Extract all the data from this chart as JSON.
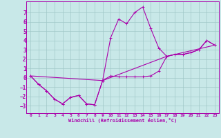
{
  "bg_color": "#c8e8e8",
  "grid_color": "#a0c8c8",
  "line_color": "#aa00aa",
  "xlim": [
    -0.5,
    23.5
  ],
  "ylim": [
    -3.8,
    8.2
  ],
  "yticks": [
    -3,
    -2,
    -1,
    0,
    1,
    2,
    3,
    4,
    5,
    6,
    7
  ],
  "xticks": [
    0,
    1,
    2,
    3,
    4,
    5,
    6,
    7,
    8,
    9,
    10,
    11,
    12,
    13,
    14,
    15,
    16,
    17,
    18,
    19,
    20,
    21,
    22,
    23
  ],
  "xlabel": "Windchill (Refroidissement éolien,°C)",
  "line1_x": [
    0,
    1,
    2,
    3,
    4,
    5,
    6,
    7,
    8,
    9,
    10,
    11,
    12,
    13,
    14,
    15,
    16,
    17,
    18,
    19,
    20,
    21,
    22,
    23
  ],
  "line1_y": [
    0.2,
    -0.7,
    -1.4,
    -2.3,
    -2.8,
    -2.1,
    -1.9,
    -2.8,
    -2.9,
    -0.3,
    0.2,
    0.1,
    0.1,
    0.1,
    0.1,
    0.2,
    0.7,
    2.3,
    2.5,
    2.5,
    2.7,
    3.0,
    4.0,
    3.5
  ],
  "line2_x": [
    0,
    1,
    2,
    3,
    4,
    5,
    6,
    7,
    8,
    9,
    10,
    11,
    12,
    13,
    14,
    15,
    16,
    17,
    18,
    19,
    20,
    21,
    22,
    23
  ],
  "line2_y": [
    0.2,
    -0.7,
    -1.4,
    -2.3,
    -2.8,
    -2.1,
    -1.9,
    -2.8,
    -2.9,
    -0.3,
    4.3,
    6.3,
    5.8,
    7.0,
    7.6,
    5.3,
    3.2,
    2.3,
    2.5,
    2.5,
    2.7,
    3.0,
    4.0,
    3.5
  ],
  "line3_x": [
    0,
    9,
    17,
    23
  ],
  "line3_y": [
    0.2,
    -0.3,
    2.3,
    3.5
  ]
}
